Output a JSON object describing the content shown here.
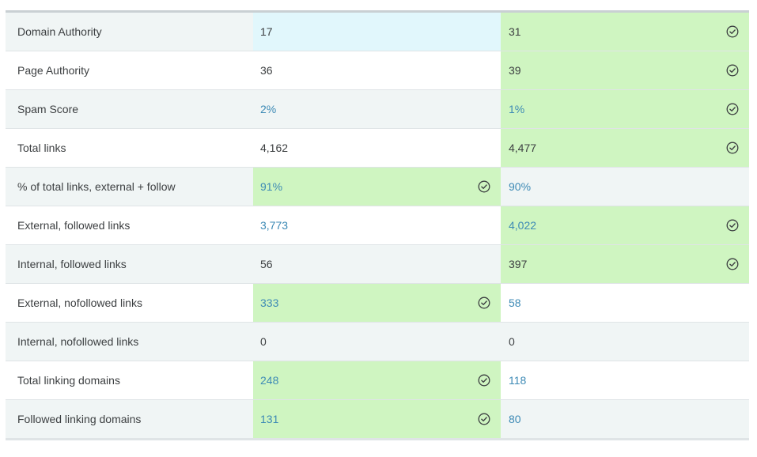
{
  "rows": [
    {
      "label": "Domain Authority",
      "v1": "17",
      "v2": "31",
      "v1_link": false,
      "v2_link": false,
      "winner": "v2",
      "highlight_v1": true,
      "bg": "alt"
    },
    {
      "label": "Page Authority",
      "v1": "36",
      "v2": "39",
      "v1_link": false,
      "v2_link": false,
      "winner": "v2",
      "bg": "white"
    },
    {
      "label": "Spam Score",
      "v1": "2%",
      "v2": "1%",
      "v1_link": true,
      "v2_link": true,
      "winner": "v2",
      "bg": "alt"
    },
    {
      "label": "Total links",
      "v1": "4,162",
      "v2": "4,477",
      "v1_link": false,
      "v2_link": false,
      "winner": "v2",
      "bg": "white"
    },
    {
      "label": "% of total links, external + follow",
      "v1": "91%",
      "v2": "90%",
      "v1_link": true,
      "v2_link": true,
      "winner": "v1",
      "bg": "alt"
    },
    {
      "label": "External, followed links",
      "v1": "3,773",
      "v2": "4,022",
      "v1_link": true,
      "v2_link": true,
      "winner": "v2",
      "bg": "white"
    },
    {
      "label": "Internal, followed links",
      "v1": "56",
      "v2": "397",
      "v1_link": false,
      "v2_link": false,
      "winner": "v2",
      "bg": "alt"
    },
    {
      "label": "External, nofollowed links",
      "v1": "333",
      "v2": "58",
      "v1_link": true,
      "v2_link": true,
      "winner": "v1",
      "bg": "white"
    },
    {
      "label": "Internal, nofollowed links",
      "v1": "0",
      "v2": "0",
      "v1_link": false,
      "v2_link": false,
      "winner": "none",
      "bg": "alt"
    },
    {
      "label": "Total linking domains",
      "v1": "248",
      "v2": "118",
      "v1_link": true,
      "v2_link": true,
      "winner": "v1",
      "bg": "white"
    },
    {
      "label": "Followed linking domains",
      "v1": "131",
      "v2": "80",
      "v1_link": true,
      "v2_link": true,
      "winner": "v1",
      "bg": "alt"
    }
  ],
  "colors": {
    "winner_bg": "#cff5c1",
    "highlight_bg": "#e1f7fc",
    "link_text": "#3d8ab5",
    "body_text": "#3c3f41",
    "alt_row_bg": "#f0f5f5"
  },
  "icons": {
    "winner": "check-circle-icon"
  }
}
